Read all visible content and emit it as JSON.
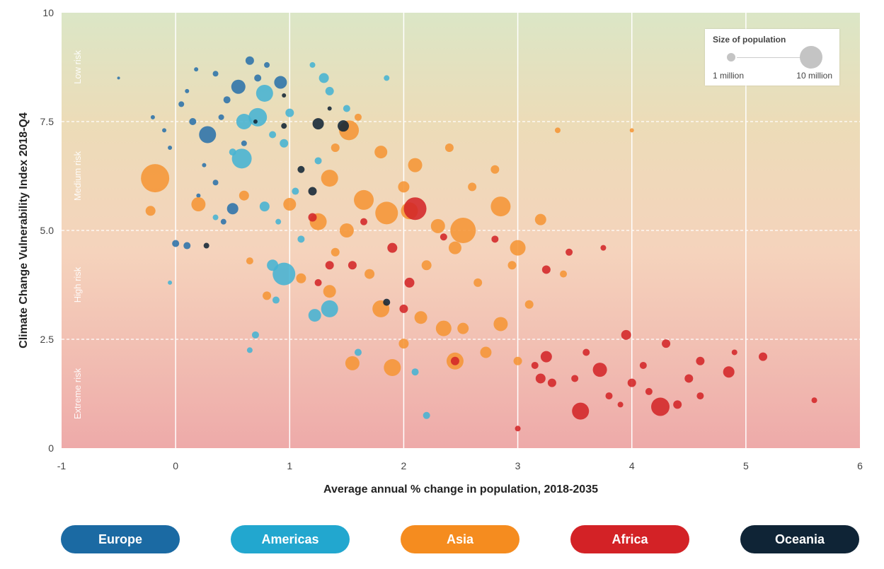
{
  "chart_data": {
    "type": "scatter",
    "title": "",
    "xlabel": "Average annual % change in population, 2018-2035",
    "ylabel": "Climate Change Vulnerability Index 2018-Q4",
    "xlim": [
      -1,
      6
    ],
    "ylim": [
      0,
      10
    ],
    "x_ticks": [
      "-1",
      "0",
      "1",
      "2",
      "3",
      "4",
      "5",
      "6"
    ],
    "y_ticks": [
      "0",
      "2.5",
      "5.0",
      "7.5",
      "10"
    ],
    "grid": "vertical gridlines at each x tick; dashed horizontal lines at 2.5, 5.0, 7.5",
    "risk_bands": [
      {
        "label": "Low risk",
        "from": 7.5,
        "to": 10
      },
      {
        "label": "Medium risk",
        "from": 5.0,
        "to": 7.5
      },
      {
        "label": "High risk",
        "from": 2.5,
        "to": 5.0
      },
      {
        "label": "Extreme risk",
        "from": 0,
        "to": 2.5
      }
    ],
    "size_legend": {
      "title": "Size of population",
      "min_label": "1 million",
      "max_label": "10 million"
    },
    "series": [
      {
        "name": "Europe",
        "color": "#2b72aa",
        "points": [
          [
            0.55,
            8.3,
            10
          ],
          [
            0.92,
            8.4,
            9
          ],
          [
            0.28,
            7.2,
            12
          ],
          [
            0.45,
            8.0,
            5
          ],
          [
            0.65,
            8.9,
            6
          ],
          [
            0.15,
            7.5,
            5
          ],
          [
            0.35,
            8.6,
            4
          ],
          [
            0.05,
            7.9,
            4
          ],
          [
            -0.1,
            7.3,
            3
          ],
          [
            0.1,
            8.2,
            3
          ],
          [
            0.5,
            5.5,
            8
          ],
          [
            0.42,
            5.2,
            4
          ],
          [
            0.35,
            6.1,
            4
          ],
          [
            0.2,
            5.8,
            3
          ],
          [
            0.0,
            4.7,
            5
          ],
          [
            0.1,
            4.65,
            5
          ],
          [
            -0.05,
            6.9,
            3
          ],
          [
            0.25,
            6.5,
            3
          ],
          [
            0.6,
            7.0,
            4
          ],
          [
            0.72,
            8.5,
            5
          ],
          [
            0.8,
            8.8,
            4
          ],
          [
            0.18,
            8.7,
            3
          ],
          [
            -0.2,
            7.6,
            3
          ],
          [
            -0.5,
            8.5,
            2
          ],
          [
            0.4,
            7.6,
            4
          ]
        ]
      },
      {
        "name": "Americas",
        "color": "#45b3d3",
        "points": [
          [
            0.58,
            6.65,
            14
          ],
          [
            0.78,
            8.15,
            12
          ],
          [
            0.72,
            7.6,
            13
          ],
          [
            0.6,
            7.5,
            11
          ],
          [
            0.95,
            4.0,
            16
          ],
          [
            1.35,
            3.2,
            12
          ],
          [
            1.22,
            3.05,
            9
          ],
          [
            0.85,
            4.2,
            8
          ],
          [
            1.3,
            8.5,
            7
          ],
          [
            1.35,
            8.2,
            6
          ],
          [
            1.0,
            7.7,
            6
          ],
          [
            0.95,
            7.0,
            6
          ],
          [
            0.78,
            5.55,
            7
          ],
          [
            2.2,
            0.75,
            5
          ],
          [
            2.1,
            1.75,
            5
          ],
          [
            1.6,
            2.2,
            5
          ],
          [
            0.7,
            2.6,
            5
          ],
          [
            0.65,
            2.25,
            4
          ],
          [
            1.5,
            7.8,
            5
          ],
          [
            1.2,
            8.8,
            4
          ],
          [
            1.85,
            8.5,
            4
          ],
          [
            0.88,
            3.4,
            5
          ],
          [
            1.05,
            5.9,
            5
          ],
          [
            0.5,
            6.8,
            5
          ],
          [
            1.1,
            4.8,
            5
          ],
          [
            0.35,
            5.3,
            4
          ],
          [
            -0.05,
            3.8,
            3
          ],
          [
            0.85,
            7.2,
            5
          ],
          [
            0.9,
            5.2,
            4
          ],
          [
            1.25,
            6.6,
            5
          ]
        ]
      },
      {
        "name": "Asia",
        "color": "#f59535",
        "points": [
          [
            -0.18,
            6.2,
            20
          ],
          [
            1.52,
            7.3,
            14
          ],
          [
            2.1,
            6.5,
            10
          ],
          [
            1.65,
            5.7,
            14
          ],
          [
            1.85,
            5.4,
            16
          ],
          [
            2.05,
            5.45,
            12
          ],
          [
            2.52,
            5.0,
            18
          ],
          [
            2.3,
            5.1,
            10
          ],
          [
            2.85,
            5.55,
            14
          ],
          [
            3.0,
            4.6,
            11
          ],
          [
            1.35,
            6.2,
            12
          ],
          [
            1.25,
            5.2,
            12
          ],
          [
            1.5,
            5.0,
            10
          ],
          [
            1.8,
            6.8,
            9
          ],
          [
            2.0,
            6.0,
            8
          ],
          [
            2.45,
            4.6,
            9
          ],
          [
            1.8,
            3.2,
            12
          ],
          [
            2.15,
            3.0,
            9
          ],
          [
            2.35,
            2.75,
            11
          ],
          [
            2.52,
            2.75,
            8
          ],
          [
            2.85,
            2.85,
            10
          ],
          [
            2.45,
            2.0,
            12
          ],
          [
            1.9,
            1.85,
            12
          ],
          [
            1.55,
            1.95,
            10
          ],
          [
            2.72,
            2.2,
            8
          ],
          [
            3.2,
            5.25,
            8
          ],
          [
            1.35,
            3.6,
            9
          ],
          [
            0.2,
            5.6,
            10
          ],
          [
            -0.22,
            5.45,
            7
          ],
          [
            0.6,
            5.8,
            7
          ],
          [
            1.0,
            5.6,
            9
          ],
          [
            1.7,
            4.0,
            7
          ],
          [
            2.2,
            4.2,
            7
          ],
          [
            2.65,
            3.8,
            6
          ],
          [
            3.1,
            3.3,
            6
          ],
          [
            2.8,
            6.4,
            6
          ],
          [
            2.4,
            6.9,
            6
          ],
          [
            1.4,
            6.9,
            6
          ],
          [
            0.8,
            3.5,
            6
          ],
          [
            1.1,
            3.9,
            7
          ],
          [
            2.0,
            2.4,
            7
          ],
          [
            3.0,
            2.0,
            6
          ],
          [
            3.35,
            7.3,
            4
          ],
          [
            4.0,
            7.3,
            3
          ],
          [
            0.65,
            4.3,
            5
          ],
          [
            1.6,
            7.6,
            5
          ],
          [
            2.95,
            4.2,
            6
          ],
          [
            1.4,
            4.5,
            6
          ],
          [
            2.6,
            6.0,
            6
          ],
          [
            3.4,
            4.0,
            5
          ]
        ]
      },
      {
        "name": "Africa",
        "color": "#d32528",
        "points": [
          [
            2.1,
            5.5,
            16
          ],
          [
            3.55,
            0.85,
            12
          ],
          [
            4.25,
            0.95,
            13
          ],
          [
            3.72,
            1.8,
            10
          ],
          [
            4.85,
            1.75,
            8
          ],
          [
            3.95,
            2.6,
            7
          ],
          [
            1.9,
            4.6,
            7
          ],
          [
            2.05,
            3.8,
            7
          ],
          [
            1.55,
            4.2,
            6
          ],
          [
            3.25,
            2.1,
            8
          ],
          [
            3.2,
            1.6,
            7
          ],
          [
            3.3,
            1.5,
            6
          ],
          [
            4.0,
            1.5,
            6
          ],
          [
            4.5,
            1.6,
            6
          ],
          [
            4.6,
            2.0,
            6
          ],
          [
            5.15,
            2.1,
            6
          ],
          [
            3.25,
            4.1,
            6
          ],
          [
            3.45,
            4.5,
            5
          ],
          [
            3.75,
            4.6,
            4
          ],
          [
            2.8,
            4.8,
            5
          ],
          [
            2.35,
            4.85,
            5
          ],
          [
            1.65,
            5.2,
            5
          ],
          [
            1.2,
            5.3,
            6
          ],
          [
            2.45,
            2.0,
            6
          ],
          [
            4.3,
            2.4,
            6
          ],
          [
            4.4,
            1.0,
            6
          ],
          [
            4.6,
            1.2,
            5
          ],
          [
            3.6,
            2.2,
            5
          ],
          [
            3.8,
            1.2,
            5
          ],
          [
            5.6,
            1.1,
            4
          ],
          [
            3.0,
            0.45,
            4
          ],
          [
            4.1,
            1.9,
            5
          ],
          [
            4.9,
            2.2,
            4
          ],
          [
            3.9,
            1.0,
            4
          ],
          [
            3.5,
            1.6,
            5
          ],
          [
            1.35,
            4.2,
            6
          ],
          [
            2.0,
            3.2,
            6
          ],
          [
            1.25,
            3.8,
            5
          ],
          [
            4.15,
            1.3,
            5
          ],
          [
            3.15,
            1.9,
            5
          ]
        ]
      },
      {
        "name": "Oceania",
        "color": "#122535",
        "points": [
          [
            1.25,
            7.45,
            8
          ],
          [
            1.47,
            7.4,
            8
          ],
          [
            1.2,
            5.9,
            6
          ],
          [
            1.1,
            6.4,
            5
          ],
          [
            0.95,
            7.4,
            4
          ],
          [
            1.85,
            3.35,
            5
          ],
          [
            0.27,
            4.65,
            4
          ],
          [
            1.35,
            7.8,
            3
          ],
          [
            0.7,
            7.5,
            3
          ],
          [
            0.95,
            8.1,
            3
          ]
        ]
      }
    ]
  },
  "legend": {
    "regions": [
      {
        "label": "Europe",
        "color": "#1b6aa3"
      },
      {
        "label": "Americas",
        "color": "#22a7cf"
      },
      {
        "label": "Asia",
        "color": "#f58c1f"
      },
      {
        "label": "Africa",
        "color": "#d32226"
      },
      {
        "label": "Oceania",
        "color": "#0f2436"
      }
    ]
  }
}
